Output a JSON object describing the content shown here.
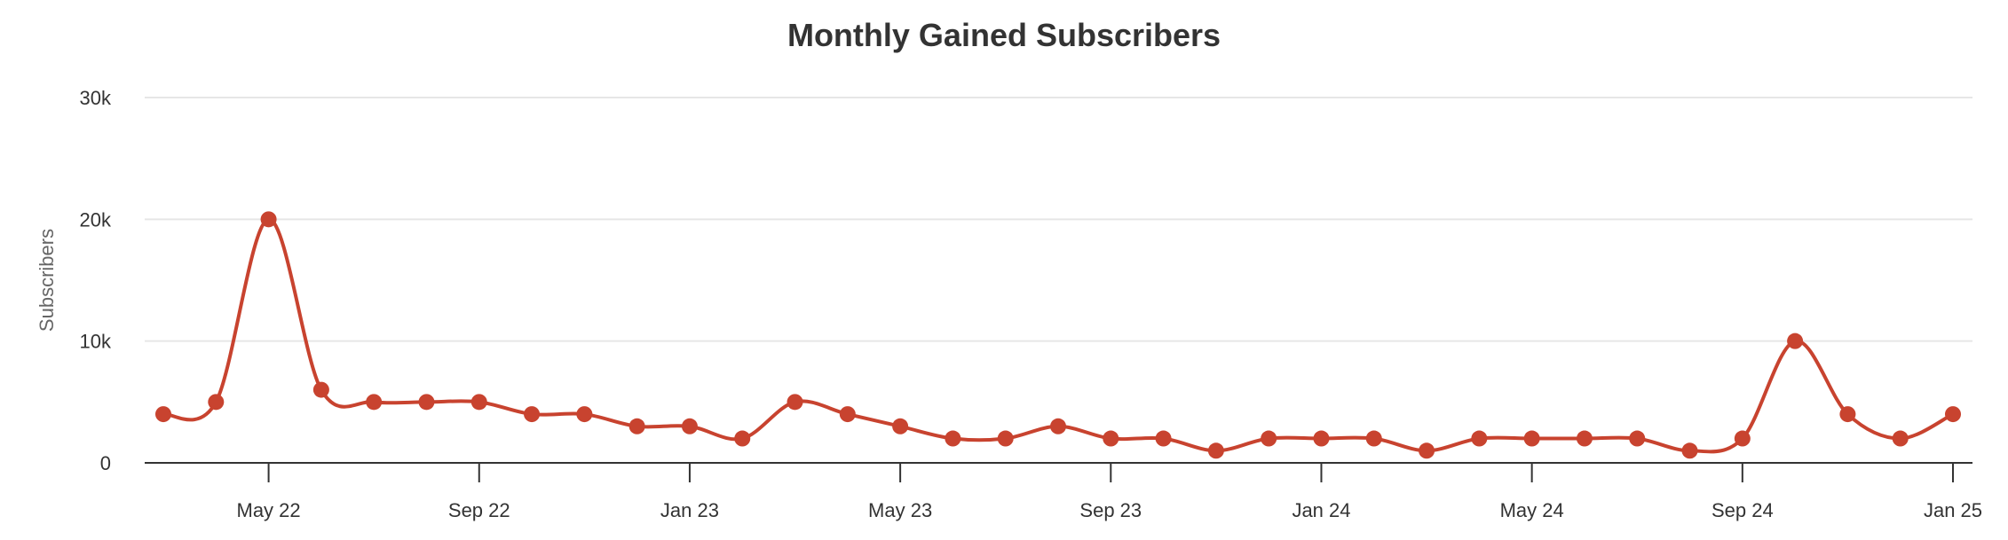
{
  "chart_data": {
    "type": "line",
    "title": "Monthly Gained Subscribers",
    "ylabel": "Subscribers",
    "xlabel": "",
    "ylim": [
      0,
      30000
    ],
    "yticks": [
      {
        "value": 0,
        "label": "0"
      },
      {
        "value": 10000,
        "label": "10k"
      },
      {
        "value": 20000,
        "label": "20k"
      },
      {
        "value": 30000,
        "label": "30k"
      }
    ],
    "xticks": [
      {
        "index": 2,
        "label": "May 22"
      },
      {
        "index": 6,
        "label": "Sep 22"
      },
      {
        "index": 10,
        "label": "Jan 23"
      },
      {
        "index": 14,
        "label": "May 23"
      },
      {
        "index": 18,
        "label": "Sep 23"
      },
      {
        "index": 22,
        "label": "Jan 24"
      },
      {
        "index": 26,
        "label": "May 24"
      },
      {
        "index": 30,
        "label": "Sep 24"
      },
      {
        "index": 34,
        "label": "Jan 25"
      }
    ],
    "grid": true,
    "legend": false,
    "color": "#c8432f",
    "series": [
      {
        "values": [
          4000,
          5000,
          20000,
          6000,
          5000,
          5000,
          5000,
          4000,
          4000,
          3000,
          3000,
          2000,
          5000,
          4000,
          3000,
          2000,
          2000,
          3000,
          2000,
          2000,
          1000,
          2000,
          2000,
          2000,
          1000,
          2000,
          2000,
          2000,
          2000,
          1000,
          2000,
          10000,
          4000,
          2000,
          4000
        ]
      }
    ]
  }
}
